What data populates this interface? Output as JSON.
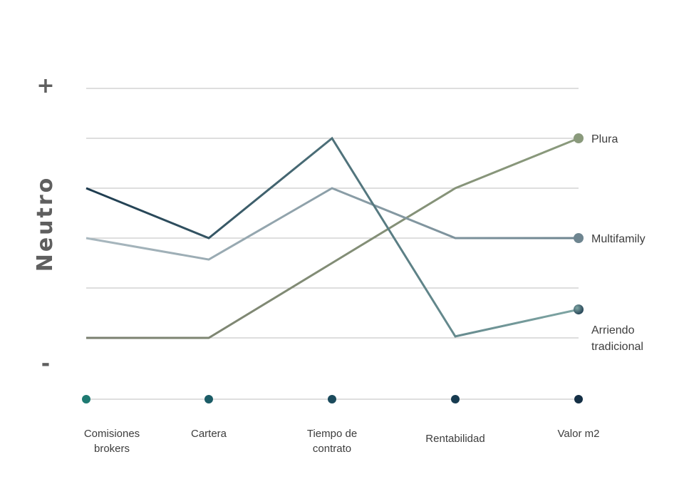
{
  "chart_data": {
    "type": "line",
    "y_axis": {
      "top_label": "+",
      "middle_label": "Neutro",
      "bottom_label": "-"
    },
    "categories": [
      [
        "Comisiones",
        "brokers"
      ],
      [
        "Cartera"
      ],
      [
        "Tiempo de",
        "contrato"
      ],
      [
        "Rentabilidad"
      ],
      [
        "Valor m2"
      ]
    ],
    "ylim": [
      0,
      5
    ],
    "grid": true,
    "series": [
      {
        "name": "Plura",
        "label_lines": [
          "Plura"
        ],
        "values": [
          0,
          0,
          1.5,
          3,
          4
        ],
        "colors": [
          "#7a7f6f",
          "#8a9a7c"
        ]
      },
      {
        "name": "Multifamily",
        "label_lines": [
          "Multifamily"
        ],
        "values": [
          2,
          1.57,
          3,
          2,
          2
        ],
        "colors": [
          "#a9b8bf",
          "#6e8590"
        ]
      },
      {
        "name": "Arriendo tradicional",
        "label_lines": [
          "Arriendo",
          "tradicional"
        ],
        "values": [
          3,
          2,
          4,
          0.03,
          0.57
        ],
        "colors": [
          "#1c3a4e",
          "#7fa6a4"
        ]
      }
    ],
    "category_marker_colors": [
      "#1e7a72",
      "#1b5c66",
      "#1b4a5c",
      "#173b50",
      "#142f45"
    ]
  }
}
